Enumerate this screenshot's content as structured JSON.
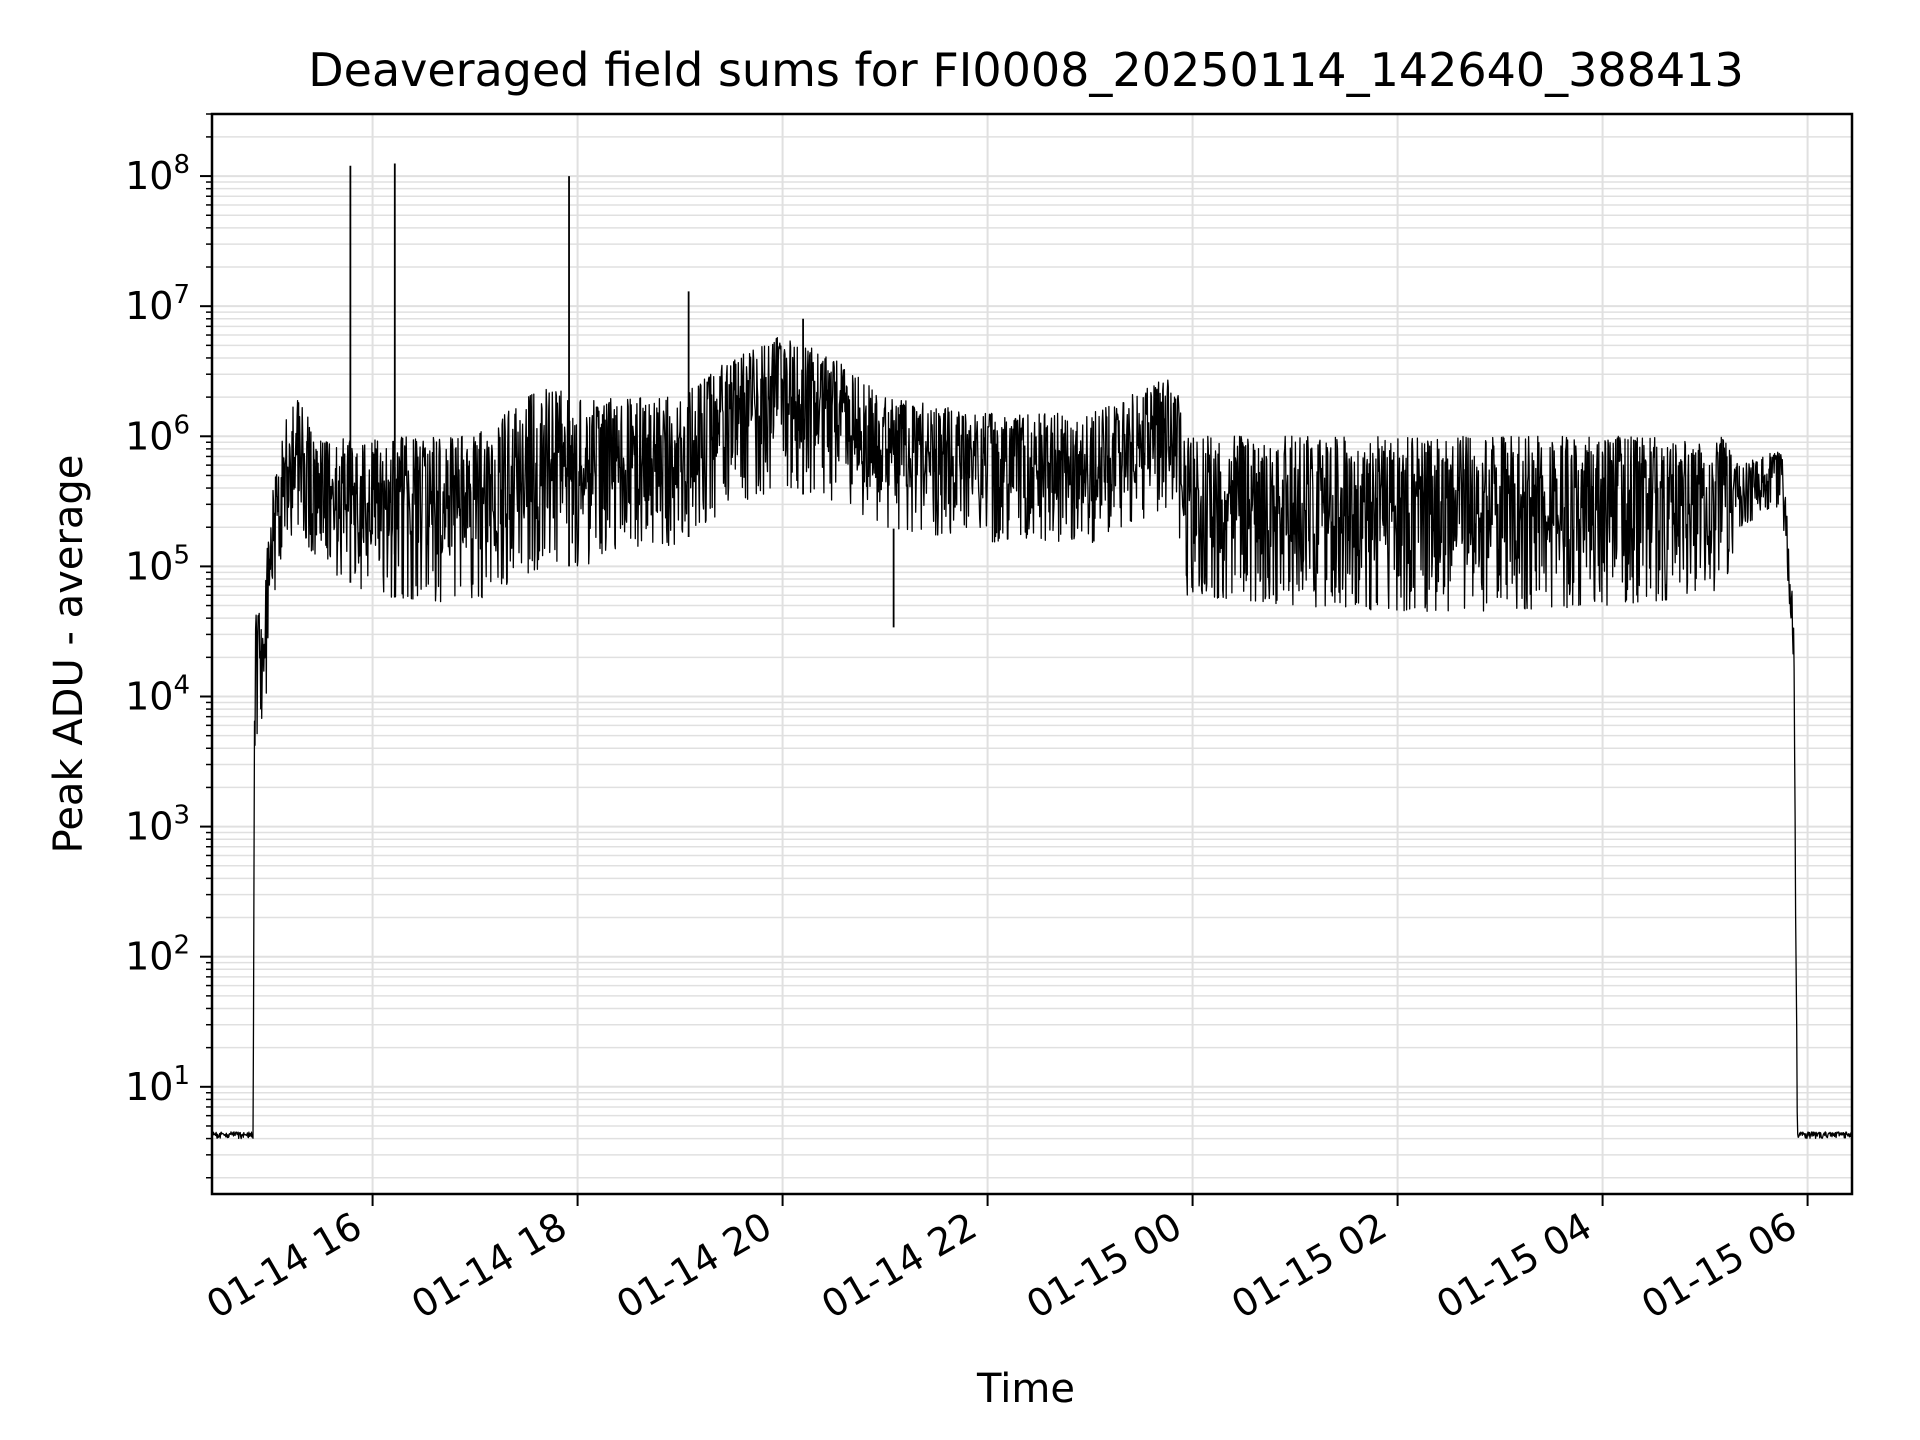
{
  "chart_data": {
    "type": "line",
    "title": "Deaveraged field sums for FI0008_20250114_142640_388413",
    "xlabel": "Time",
    "ylabel": "Peak ADU - average",
    "yscale": "log",
    "ylim": [
      1.5,
      300000000
    ],
    "xlim": [
      "2025-01-14 14:26",
      "2025-01-15 06:26"
    ],
    "grid": true,
    "line_color": "#000000",
    "grid_color": "#e0e0e0",
    "x_ticks": [
      {
        "value": "2025-01-14 16:00",
        "label": "01-14 16"
      },
      {
        "value": "2025-01-14 18:00",
        "label": "01-14 18"
      },
      {
        "value": "2025-01-14 20:00",
        "label": "01-14 20"
      },
      {
        "value": "2025-01-14 22:00",
        "label": "01-14 22"
      },
      {
        "value": "2025-01-15 00:00",
        "label": "01-15 00"
      },
      {
        "value": "2025-01-15 02:00",
        "label": "01-15 02"
      },
      {
        "value": "2025-01-15 04:00",
        "label": "01-15 04"
      },
      {
        "value": "2025-01-15 06:00",
        "label": "01-15 06"
      }
    ],
    "y_ticks": [
      {
        "value": 10,
        "base": "10",
        "exp": "1"
      },
      {
        "value": 100,
        "base": "10",
        "exp": "2"
      },
      {
        "value": 1000,
        "base": "10",
        "exp": "3"
      },
      {
        "value": 10000,
        "base": "10",
        "exp": "4"
      },
      {
        "value": 100000,
        "base": "10",
        "exp": "5"
      },
      {
        "value": 1000000,
        "base": "10",
        "exp": "6"
      },
      {
        "value": 10000000,
        "base": "10",
        "exp": "7"
      },
      {
        "value": 100000000,
        "base": "10",
        "exp": "8"
      }
    ],
    "series": [
      {
        "color": "#000000",
        "envelope": [
          {
            "t": "2025-01-14 14:26",
            "low": 4,
            "high": 4.5
          },
          {
            "t": "2025-01-14 14:50",
            "low": 4,
            "high": 4.5
          },
          {
            "t": "2025-01-14 14:51",
            "low": 3000,
            "high": 40000
          },
          {
            "t": "2025-01-14 14:57",
            "low": 8000,
            "high": 100000
          },
          {
            "t": "2025-01-14 15:05",
            "low": 100000,
            "high": 1000000
          },
          {
            "t": "2025-01-14 15:15",
            "low": 200000,
            "high": 2000000
          },
          {
            "t": "2025-01-14 15:30",
            "low": 100000,
            "high": 1000000
          },
          {
            "t": "2025-01-14 16:00",
            "low": 60000,
            "high": 1000000
          },
          {
            "t": "2025-01-14 17:00",
            "low": 50000,
            "high": 1000000
          },
          {
            "t": "2025-01-14 17:40",
            "low": 100000,
            "high": 2500000
          },
          {
            "t": "2025-01-14 18:00",
            "low": 100000,
            "high": 2000000
          },
          {
            "t": "2025-01-14 19:00",
            "low": 150000,
            "high": 2000000
          },
          {
            "t": "2025-01-14 19:30",
            "low": 300000,
            "high": 4000000
          },
          {
            "t": "2025-01-14 20:00",
            "low": 400000,
            "high": 6000000
          },
          {
            "t": "2025-01-14 20:30",
            "low": 300000,
            "high": 4000000
          },
          {
            "t": "2025-01-14 21:00",
            "low": 200000,
            "high": 2000000
          },
          {
            "t": "2025-01-14 22:00",
            "low": 150000,
            "high": 1500000
          },
          {
            "t": "2025-01-14 23:00",
            "low": 150000,
            "high": 1500000
          },
          {
            "t": "2025-01-14 23:50",
            "low": 300000,
            "high": 3000000
          },
          {
            "t": "2025-01-14 23:55",
            "low": 60000,
            "high": 1000000
          },
          {
            "t": "2025-01-15 01:00",
            "low": 50000,
            "high": 1000000
          },
          {
            "t": "2025-01-15 02:00",
            "low": 45000,
            "high": 1000000
          },
          {
            "t": "2025-01-15 03:00",
            "low": 45000,
            "high": 1000000
          },
          {
            "t": "2025-01-15 04:00",
            "low": 50000,
            "high": 1000000
          },
          {
            "t": "2025-01-15 05:10",
            "low": 60000,
            "high": 1000000
          },
          {
            "t": "2025-01-15 05:20",
            "low": 200000,
            "high": 600000
          },
          {
            "t": "2025-01-15 05:45",
            "low": 300000,
            "high": 800000
          },
          {
            "t": "2025-01-15 05:52",
            "low": 10000,
            "high": 50000
          },
          {
            "t": "2025-01-15 05:54",
            "low": 4,
            "high": 4.5
          },
          {
            "t": "2025-01-15 06:26",
            "low": 4,
            "high": 4.5
          }
        ],
        "spikes": [
          {
            "t": "2025-01-14 15:47",
            "value": 120000000
          },
          {
            "t": "2025-01-14 16:13",
            "value": 125000000
          },
          {
            "t": "2025-01-14 17:55",
            "value": 100000000
          },
          {
            "t": "2025-01-14 19:05",
            "value": 13000000
          },
          {
            "t": "2025-01-14 20:12",
            "value": 8000000
          },
          {
            "t": "2025-01-14 21:05",
            "value": 34000
          }
        ]
      }
    ]
  }
}
